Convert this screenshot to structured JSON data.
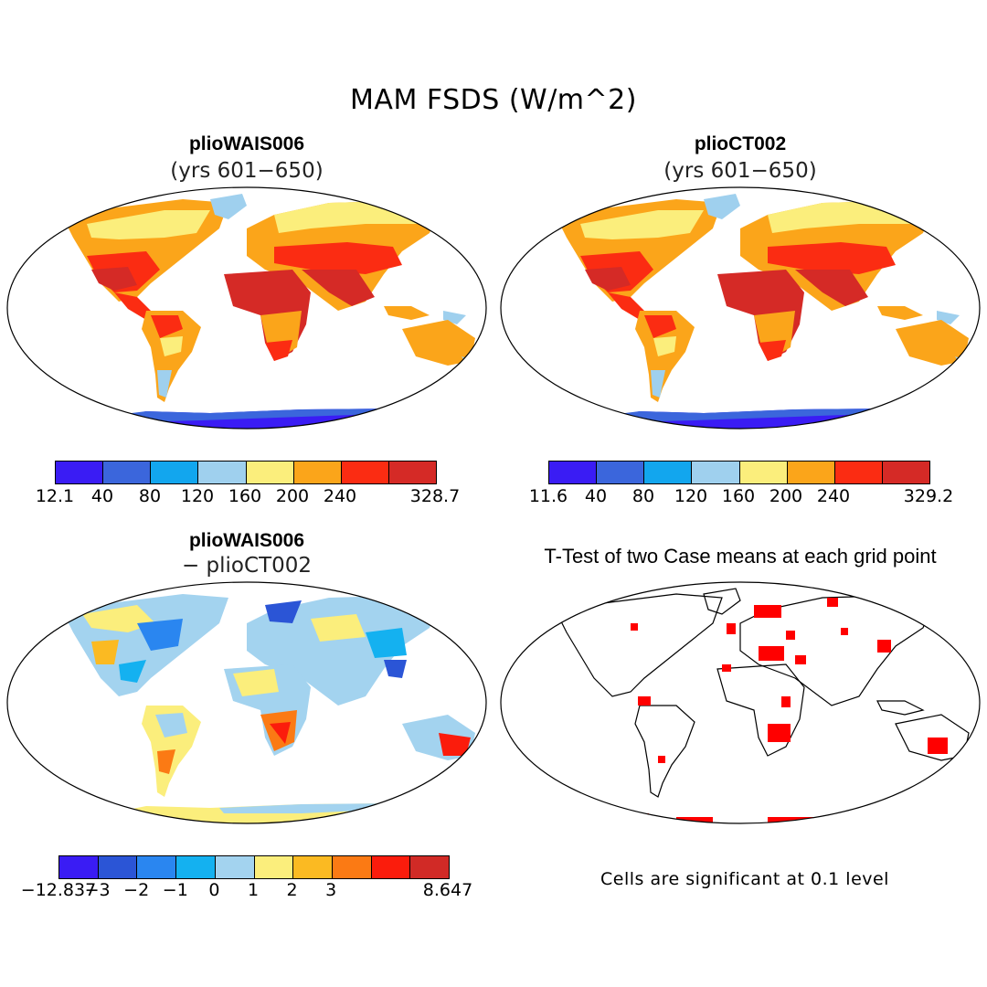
{
  "title": "MAM FSDS (W/m^2)",
  "panels": {
    "a": {
      "title": "plioWAIS006",
      "subtitle": "(yrs 601−650)"
    },
    "b": {
      "title": "plioCT002",
      "subtitle": "(yrs 601−650)"
    },
    "c": {
      "title": "plioWAIS006",
      "subtitle": "− plioCT002"
    },
    "d": {
      "title": "T-Test of two Case means at each grid point"
    }
  },
  "colorbars": {
    "a": {
      "colors": [
        "#3a1cf4",
        "#3b66dc",
        "#12a6ee",
        "#9fd0ee",
        "#fbee7c",
        "#fba51a",
        "#fb2c12",
        "#d52a26"
      ],
      "ticks": [
        "12.1",
        "40",
        "80",
        "120",
        "160",
        "200",
        "240",
        "328.7"
      ]
    },
    "b": {
      "colors": [
        "#3a1cf4",
        "#3b66dc",
        "#12a6ee",
        "#9fd0ee",
        "#fbee7c",
        "#fba51a",
        "#fb2c12",
        "#d52a26"
      ],
      "ticks": [
        "11.6",
        "40",
        "80",
        "120",
        "160",
        "200",
        "240",
        "329.2"
      ]
    },
    "c": {
      "colors": [
        "#3a1cf4",
        "#2b55d6",
        "#2a86f0",
        "#14b1f0",
        "#a3d3ef",
        "#fbee7c",
        "#fbba22",
        "#fb7a14",
        "#fb1c0c",
        "#d12a26"
      ],
      "ticks": [
        "−12.837",
        "−3",
        "−2",
        "−1",
        "0",
        "1",
        "2",
        "3",
        "8.647"
      ]
    }
  },
  "note": "Cells are significant at 0.1 level"
}
